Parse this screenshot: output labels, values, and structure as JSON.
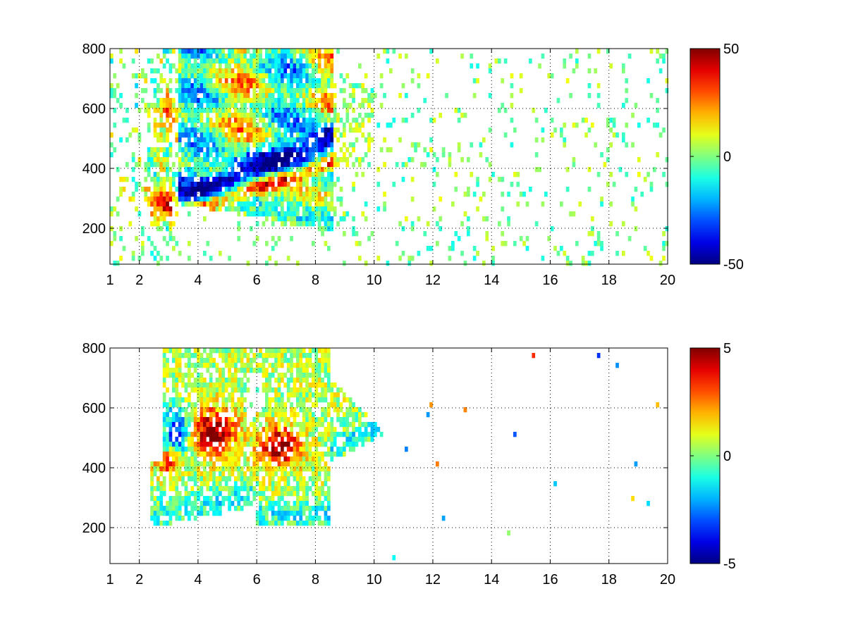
{
  "chart_data": [
    {
      "type": "heatmap",
      "title": "",
      "xlabel": "",
      "ylabel": "",
      "xlim": [
        1,
        20
      ],
      "ylim": [
        80,
        800
      ],
      "x_ticks": [
        1,
        2,
        4,
        6,
        8,
        10,
        12,
        14,
        16,
        18,
        20
      ],
      "y_ticks": [
        200,
        400,
        600,
        800
      ],
      "grid": true,
      "colorbar": {
        "colormap": "jet",
        "range": [
          -50,
          50
        ],
        "ticks": [
          -50,
          0,
          50
        ]
      },
      "features": [
        {
          "kind": "band",
          "x_from": 3.5,
          "x_to": 8.6,
          "inner_y_at_start": 300,
          "inner_y_at_end": 500,
          "value": -35,
          "description": "strong negative arc"
        },
        {
          "kind": "band",
          "x_from": 3.3,
          "x_to": 8.5,
          "inner_y_at_start": 270,
          "inner_y_at_end": 430,
          "value": 35,
          "description": "strong positive arc"
        },
        {
          "kind": "blob",
          "x": 2.8,
          "y": 280,
          "value": 40
        },
        {
          "kind": "blob",
          "x": 2.9,
          "y": 580,
          "value": 20
        }
      ]
    },
    {
      "type": "heatmap",
      "title": "",
      "xlabel": "",
      "ylabel": "",
      "xlim": [
        1,
        20
      ],
      "ylim": [
        80,
        800
      ],
      "x_ticks": [
        1,
        2,
        4,
        6,
        8,
        10,
        12,
        14,
        16,
        18,
        20
      ],
      "y_ticks": [
        200,
        400,
        600,
        800
      ],
      "grid": true,
      "colorbar": {
        "colormap": "jet",
        "range": [
          -5,
          5
        ],
        "ticks": [
          -5,
          0,
          5
        ]
      },
      "features": [
        {
          "kind": "blob",
          "x": 4.5,
          "y": 520,
          "value": 4.5
        },
        {
          "kind": "blob",
          "x": 6.8,
          "y": 470,
          "value": 4.5
        },
        {
          "kind": "blob",
          "x": 3.0,
          "y": 420,
          "value": 3.5
        },
        {
          "kind": "blob",
          "x": 3.3,
          "y": 520,
          "value": -3.5
        }
      ]
    }
  ],
  "colors": {
    "axes": "#000000",
    "grid": "#000000",
    "background": "#ffffff"
  }
}
